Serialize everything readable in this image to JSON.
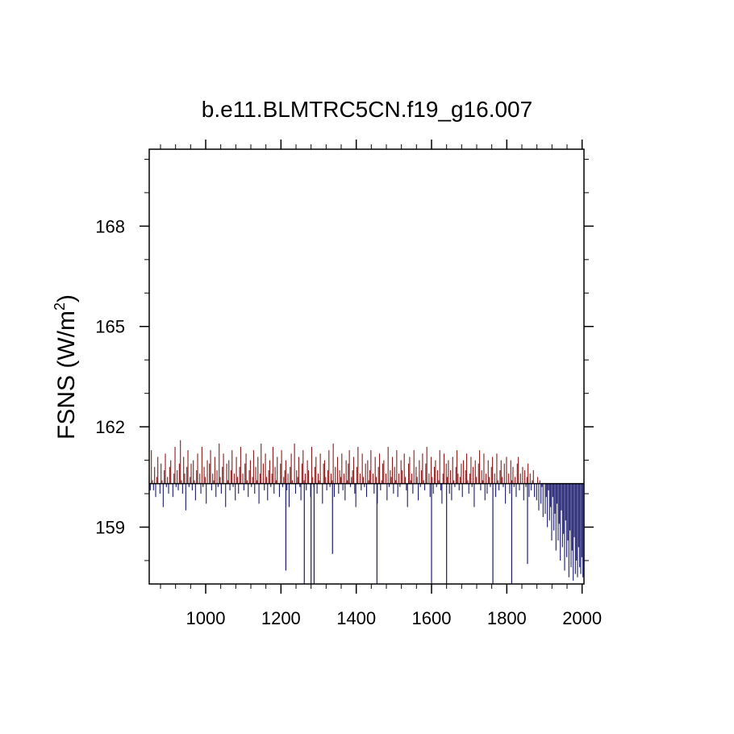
{
  "chart_data": {
    "type": "bar",
    "title": "b.e11.BLMTRC5CN.f19_g16.007",
    "ylabel_main": "FSNS (W/m",
    "ylabel_sup": "2",
    "ylabel_close": ")",
    "xlim": [
      850,
      2005
    ],
    "ylim": [
      157.3,
      170.3
    ],
    "baseline": 160.3,
    "x_ticks": [
      1000,
      1200,
      1400,
      1600,
      1800,
      2000
    ],
    "x_tick_labels": [
      "1000",
      "1200",
      "1400",
      "1600",
      "1800",
      "2000"
    ],
    "y_ticks": [
      159,
      162,
      165,
      168
    ],
    "y_tick_labels": [
      "159",
      "162",
      "165",
      "168"
    ],
    "x_minor_step": 40,
    "y_minor_step": 1,
    "above_color": "#8b1a1a",
    "below_color": "#1a1a6e",
    "series": [
      {
        "x_start": 850,
        "x_end": 2005,
        "values": [
          160.6,
          160.1,
          161.3,
          160.4,
          160.1,
          160.8,
          159.9,
          160.5,
          161.1,
          160.3,
          160.0,
          160.9,
          160.4,
          159.6,
          160.7,
          161.2,
          160.2,
          160.5,
          160.0,
          160.8,
          161.0,
          160.3,
          159.9,
          160.6,
          161.4,
          160.2,
          160.7,
          160.1,
          160.9,
          161.6,
          160.4,
          160.0,
          161.1,
          160.6,
          159.5,
          160.8,
          161.3,
          160.2,
          160.5,
          160.9,
          160.1,
          161.0,
          160.4,
          159.8,
          160.7,
          161.2,
          160.3,
          160.6,
          160.0,
          161.4,
          160.2,
          160.8,
          160.5,
          159.7,
          161.0,
          160.3,
          160.9,
          161.3,
          160.1,
          160.6,
          160.4,
          161.1,
          159.9,
          160.7,
          160.2,
          161.5,
          160.5,
          160.0,
          160.8,
          161.2,
          160.3,
          159.6,
          160.9,
          160.4,
          161.0,
          160.1,
          160.7,
          161.3,
          160.2,
          160.6,
          159.8,
          161.1,
          160.5,
          160.0,
          160.8,
          161.4,
          160.3,
          160.6,
          160.1,
          160.9,
          161.2,
          160.4,
          159.9,
          160.7,
          161.0,
          160.2,
          160.5,
          161.3,
          160.0,
          160.8,
          160.4,
          161.1,
          159.7,
          160.6,
          161.5,
          160.3,
          160.9,
          160.1,
          161.2,
          160.5,
          159.8,
          160.7,
          161.0,
          160.2,
          160.6,
          161.4,
          160.0,
          160.8,
          160.4,
          161.1,
          160.3,
          159.9,
          160.9,
          161.3,
          160.2,
          160.5,
          160.7,
          161.0,
          160.1,
          160.6,
          159.6,
          160.8,
          161.2,
          160.4,
          160.3,
          161.5,
          160.0,
          160.7,
          160.5,
          161.1,
          160.2,
          159.8,
          160.9,
          161.3,
          160.4,
          160.6,
          160.1,
          161.0,
          160.7,
          160.3,
          159.9,
          161.4,
          160.5,
          160.2,
          160.8,
          161.1,
          160.0,
          160.6,
          160.4,
          161.2,
          160.3,
          159.7,
          160.9,
          161.0,
          160.5,
          160.1,
          160.7,
          161.3,
          160.2,
          160.6,
          160.4,
          161.5,
          159.9,
          160.8,
          160.3,
          161.1,
          160.0,
          160.7,
          160.5,
          161.2,
          160.1,
          160.6,
          159.8,
          161.0,
          160.4,
          160.9,
          161.3,
          160.2,
          160.5,
          160.7,
          161.1,
          160.0,
          159.6,
          160.8,
          161.4,
          160.3,
          160.6,
          160.1,
          161.2,
          160.5,
          160.2,
          160.9,
          159.9,
          161.0,
          160.4,
          160.7,
          161.3,
          160.3,
          160.6,
          160.0,
          161.1,
          160.5,
          159.7,
          160.8,
          161.2,
          160.1,
          160.4,
          160.9,
          161.0,
          160.3,
          160.6,
          159.8,
          161.4,
          160.2,
          160.7,
          160.5,
          161.1,
          160.0,
          160.8,
          160.4,
          161.3,
          159.9,
          160.6,
          160.2,
          161.0,
          160.7,
          160.3,
          161.2,
          160.5,
          160.1,
          159.6,
          160.9,
          161.1,
          160.4,
          160.6,
          160.0,
          161.3,
          160.3,
          160.8,
          160.5,
          159.8,
          161.0,
          160.2,
          160.7,
          161.2,
          160.4,
          160.1,
          160.9,
          161.4,
          160.3,
          160.6,
          159.9,
          161.1,
          160.5,
          160.0,
          160.8,
          161.0,
          160.2,
          160.7,
          160.4,
          161.3,
          160.1,
          159.7,
          160.6,
          161.2,
          160.3,
          160.9,
          160.5,
          161.0,
          160.0,
          160.7,
          159.8,
          161.1,
          160.4,
          160.2,
          160.8,
          161.3,
          160.6,
          160.1,
          160.5,
          160.9,
          159.9,
          161.0,
          160.3,
          160.7,
          161.2,
          160.4,
          160.0,
          160.6,
          161.1,
          160.2,
          160.8,
          159.6,
          161.0,
          160.5,
          160.3,
          160.9,
          161.3,
          160.1,
          160.7,
          160.4,
          161.2,
          159.8,
          160.6,
          160.0,
          161.0,
          160.5,
          160.2,
          160.8,
          161.1,
          160.3,
          160.6,
          159.9,
          161.2,
          160.4,
          160.1,
          160.7,
          161.0,
          160.5,
          160.2,
          160.9,
          159.7,
          161.1,
          160.3,
          160.6,
          160.0,
          161.0,
          160.4,
          160.8,
          160.2,
          160.5,
          159.9,
          160.9,
          161.1,
          160.1,
          160.6,
          160.3,
          160.8,
          159.8,
          160.7,
          160.2,
          160.5,
          160.9,
          159.9,
          160.6,
          160.1,
          160.4,
          160.7,
          159.9,
          160.3,
          159.8,
          160.5,
          159.5,
          160.4,
          159.7,
          160.2,
          159.3,
          160.3,
          159.4,
          159.9,
          159.0,
          160.1,
          159.2,
          159.6,
          158.6,
          159.9,
          158.9,
          159.4,
          158.3,
          159.7,
          158.6,
          159.1,
          158.0,
          159.5,
          158.4,
          158.8,
          157.7,
          159.2,
          158.1,
          158.6,
          157.5,
          158.9,
          157.8,
          158.3,
          157.4,
          158.7,
          157.6,
          158.0,
          157.5,
          158.4,
          157.8,
          157.6,
          158.1,
          157.5,
          157.9
        ]
      }
    ],
    "spikes": [
      {
        "x": 1213,
        "value": 157.7
      },
      {
        "x": 1262,
        "value": 157.3
      },
      {
        "x": 1280,
        "value": 157.3
      },
      {
        "x": 1288,
        "value": 157.3
      },
      {
        "x": 1337,
        "value": 158.2
      },
      {
        "x": 1455,
        "value": 157.3
      },
      {
        "x": 1600,
        "value": 157.3
      },
      {
        "x": 1640,
        "value": 157.3
      },
      {
        "x": 1763,
        "value": 157.3
      },
      {
        "x": 1813,
        "value": 157.3
      },
      {
        "x": 1855,
        "value": 157.9
      }
    ]
  }
}
